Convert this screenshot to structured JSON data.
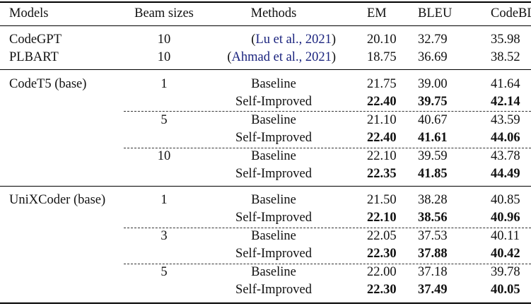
{
  "headers": {
    "models": "Models",
    "beam": "Beam sizes",
    "methods": "Methods",
    "em": "EM",
    "bleu": "BLEU",
    "codebleu": "CodeBLEU"
  },
  "rows": [
    {
      "model": "CodeGPT",
      "beam": "10",
      "method_open": "(",
      "method_cite": "Lu et al., 2021",
      "method_close": ")",
      "em": "20.10",
      "bleu": "32.79",
      "codebleu": "35.98"
    },
    {
      "model": "PLBART",
      "beam": "10",
      "method_open": "(",
      "method_cite": "Ahmad et al., 2021",
      "method_close": ")",
      "em": "18.75",
      "bleu": "36.69",
      "codebleu": "38.52"
    },
    {
      "model": "CodeT5 (base)",
      "beam": "1",
      "method": "Baseline",
      "em": "21.75",
      "bleu": "39.00",
      "codebleu": "41.64"
    },
    {
      "method": "Self-Improved",
      "em": "22.40",
      "bleu": "39.75",
      "codebleu": "42.14"
    },
    {
      "beam": "5",
      "method": "Baseline",
      "em": "21.10",
      "bleu": "40.67",
      "codebleu": "43.59"
    },
    {
      "method": "Self-Improved",
      "em": "22.40",
      "bleu": "41.61",
      "codebleu": "44.06"
    },
    {
      "beam": "10",
      "method": "Baseline",
      "em": "22.10",
      "bleu": "39.59",
      "codebleu": "43.78"
    },
    {
      "method": "Self-Improved",
      "em": "22.35",
      "bleu": "41.85",
      "codebleu": "44.49"
    },
    {
      "model": "UniXCoder (base)",
      "beam": "1",
      "method": "Baseline",
      "em": "21.50",
      "bleu": "38.28",
      "codebleu": "40.85"
    },
    {
      "method": "Self-Improved",
      "em": "22.10",
      "bleu": "38.56",
      "codebleu": "40.96"
    },
    {
      "beam": "3",
      "method": "Baseline",
      "em": "22.05",
      "bleu": "37.53",
      "codebleu": "40.11"
    },
    {
      "method": "Self-Improved",
      "em": "22.30",
      "bleu": "37.88",
      "codebleu": "40.42"
    },
    {
      "beam": "5",
      "method": "Baseline",
      "em": "22.00",
      "bleu": "37.18",
      "codebleu": "39.78"
    },
    {
      "method": "Self-Improved",
      "em": "22.30",
      "bleu": "37.49",
      "codebleu": "40.05"
    }
  ]
}
